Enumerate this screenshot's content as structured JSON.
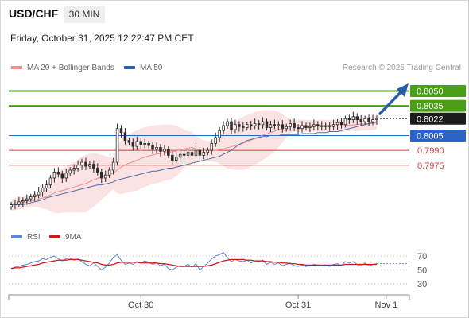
{
  "header": {
    "symbol": "USD/CHF",
    "timeframe": "30 MIN",
    "datetime": "Friday, October 31, 2025 12:22:47 PM CET"
  },
  "legend": {
    "ma20_label": "MA 20 + Bollinger Bands",
    "ma50_label": "MA 50",
    "credit": "Research © 2025 Trading Central",
    "rsi_label": "RSI",
    "ma9_label": "9MA"
  },
  "colors": {
    "green_level": "#4a9e16",
    "blue_level": "#2b64c6",
    "red_level": "#d63c3c",
    "ma20": "#f08d8d",
    "bollinger_fill": "#fbdada",
    "ma50": "#4f6fa8",
    "candle": "#2a2a2a",
    "rsi": "#5b87d8",
    "rsi_ma": "#d01919",
    "arrow": "#2a5fa6",
    "current_price_bg": "#1c1c1c"
  },
  "chart_data": [
    {
      "type": "candlestick",
      "title": "USD/CHF",
      "ylim": [
        0.7925,
        0.806
      ],
      "current_price": 0.8022,
      "levels": [
        {
          "label": "0.8050",
          "value": 0.805,
          "kind": "resistance"
        },
        {
          "label": "0.8035",
          "value": 0.8035,
          "kind": "resistance"
        },
        {
          "label": "0.8005",
          "value": 0.8005,
          "kind": "pivot"
        },
        {
          "label": "0.7990",
          "value": 0.799,
          "kind": "support"
        },
        {
          "label": "0.7975",
          "value": 0.7975,
          "kind": "support"
        }
      ],
      "current_label": "0.8022",
      "x_ticks": [
        "Oct 30",
        "Oct 31",
        "Nov 1"
      ],
      "x_tick_index": [
        33,
        73,
        95
      ],
      "close": [
        0.7935,
        0.7936,
        0.7938,
        0.7939,
        0.7941,
        0.7943,
        0.7945,
        0.7948,
        0.7952,
        0.7955,
        0.7962,
        0.7968,
        0.7966,
        0.7962,
        0.7967,
        0.797,
        0.7972,
        0.7975,
        0.7978,
        0.7974,
        0.7976,
        0.7972,
        0.7968,
        0.7962,
        0.7965,
        0.797,
        0.7978,
        0.8012,
        0.8008,
        0.8,
        0.7998,
        0.7994,
        0.7999,
        0.7996,
        0.7997,
        0.7995,
        0.7991,
        0.7993,
        0.7989,
        0.7991,
        0.7985,
        0.798,
        0.7983,
        0.7986,
        0.7985,
        0.7988,
        0.7985,
        0.799,
        0.7985,
        0.7988,
        0.799,
        0.7997,
        0.8003,
        0.801,
        0.8015,
        0.8019,
        0.8011,
        0.8016,
        0.8014,
        0.8013,
        0.8016,
        0.8015,
        0.8017,
        0.8016,
        0.8019,
        0.8013,
        0.8016,
        0.8015,
        0.8016,
        0.8012,
        0.8014,
        0.8017,
        0.8013,
        0.8012,
        0.8015,
        0.8013,
        0.8014,
        0.8016,
        0.8015,
        0.8014,
        0.8015,
        0.8014,
        0.8016,
        0.8018,
        0.8016,
        0.8022,
        0.8021,
        0.8024,
        0.8021,
        0.8019,
        0.8022,
        0.8019,
        0.8021,
        0.8022
      ],
      "ma50": [
        0.7935,
        0.7935,
        0.7935,
        0.7935,
        0.7936,
        0.7937,
        0.7938,
        0.7939,
        0.794,
        0.7942,
        0.7943,
        0.7944,
        0.7945,
        0.7946,
        0.7947,
        0.7948,
        0.7949,
        0.795,
        0.7951,
        0.7952,
        0.7953,
        0.7954,
        0.7955,
        0.7955,
        0.7956,
        0.7957,
        0.7958,
        0.796,
        0.7961,
        0.7962,
        0.7963,
        0.7964,
        0.7965,
        0.7966,
        0.7967,
        0.7968,
        0.7969,
        0.7969,
        0.797,
        0.7971,
        0.7972,
        0.7972,
        0.7973,
        0.7974,
        0.7975,
        0.7976,
        0.7977,
        0.7978,
        0.7979,
        0.798,
        0.7981,
        0.7982,
        0.7983,
        0.7984,
        0.7986,
        0.7988,
        0.799,
        0.7993,
        0.7996,
        0.7998,
        0.8,
        0.8001,
        0.8002,
        0.8003,
        0.8004,
        0.8004,
        0.8005,
        0.8005,
        0.8005,
        0.8006,
        0.8006,
        0.8006,
        0.8006,
        0.8006,
        0.8007,
        0.8007,
        0.8007,
        0.8007,
        0.8008,
        0.8008,
        0.8008,
        0.8009,
        0.8009,
        0.8009,
        0.801,
        0.8011,
        0.8012,
        0.8013,
        0.8014,
        0.8015,
        0.8016,
        0.8017,
        0.8018,
        0.8019
      ]
    },
    {
      "type": "line",
      "title": "RSI",
      "ylim": [
        20,
        80
      ],
      "y_ticks": [
        70,
        50,
        30
      ],
      "series": [
        {
          "name": "RSI",
          "values": [
            52,
            54,
            55,
            57,
            58,
            60,
            62,
            63,
            66,
            65,
            68,
            70,
            66,
            63,
            66,
            67,
            64,
            66,
            62,
            58,
            56,
            60,
            55,
            50,
            54,
            60,
            68,
            72,
            64,
            58,
            60,
            58,
            62,
            60,
            63,
            61,
            58,
            60,
            56,
            58,
            52,
            50,
            54,
            56,
            55,
            58,
            54,
            59,
            50,
            55,
            60,
            66,
            70,
            72,
            75,
            68,
            62,
            65,
            63,
            62,
            64,
            60,
            63,
            62,
            64,
            58,
            61,
            58,
            60,
            56,
            58,
            60,
            56,
            55,
            57,
            55,
            56,
            58,
            57,
            56,
            57,
            55,
            58,
            59,
            56,
            62,
            60,
            62,
            58,
            56,
            60,
            56,
            58,
            59
          ]
        },
        {
          "name": "9MA",
          "values": [
            52,
            53,
            53,
            54,
            55,
            56,
            57,
            58,
            60,
            61,
            62,
            63,
            64,
            64,
            64,
            65,
            65,
            65,
            64,
            63,
            62,
            61,
            60,
            58,
            57,
            57,
            58,
            60,
            61,
            61,
            61,
            61,
            61,
            60,
            60,
            60,
            60,
            60,
            59,
            59,
            58,
            57,
            56,
            55,
            55,
            55,
            55,
            55,
            55,
            55,
            56,
            57,
            59,
            61,
            63,
            64,
            65,
            65,
            65,
            65,
            64,
            64,
            63,
            63,
            63,
            62,
            62,
            61,
            61,
            60,
            60,
            59,
            59,
            58,
            58,
            57,
            57,
            57,
            57,
            57,
            57,
            57,
            57,
            57,
            57,
            58,
            58,
            58,
            58,
            58,
            58,
            58,
            58,
            58
          ]
        }
      ]
    }
  ]
}
